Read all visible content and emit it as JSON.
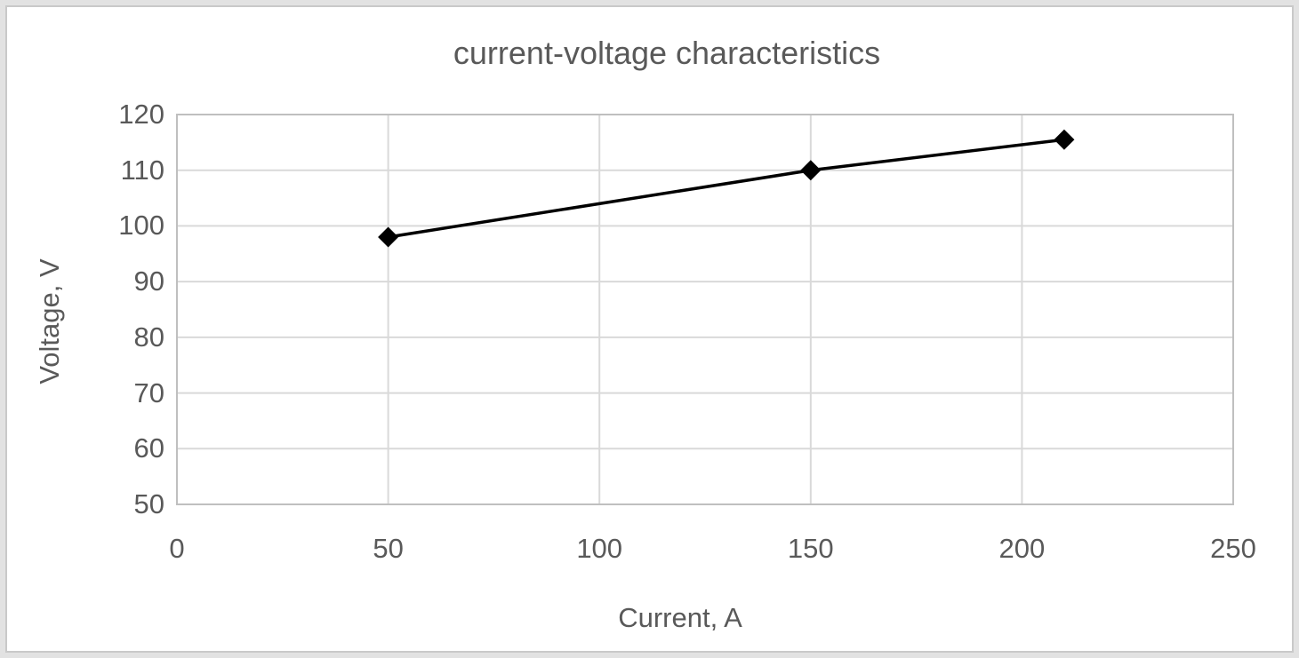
{
  "chart_data": {
    "type": "line",
    "title": "current-voltage characteristics",
    "xlabel": "Current, A",
    "ylabel": "Voltage, V",
    "series": [
      {
        "name": "current-voltage characteristics",
        "x": [
          50,
          150,
          210
        ],
        "y": [
          98,
          110,
          115.5
        ]
      }
    ],
    "xlim": [
      0,
      250
    ],
    "ylim": [
      50,
      120
    ],
    "x_ticks": [
      0,
      50,
      100,
      150,
      200,
      250
    ],
    "y_ticks": [
      50,
      60,
      70,
      80,
      90,
      100,
      110,
      120
    ],
    "grid": true,
    "legend": "none",
    "marker": "diamond",
    "colors": {
      "line": "#000000",
      "marker": "#000000",
      "text": "#595959",
      "gridline": "#d9d9d9",
      "plot_border": "#bfbfbf",
      "chart_border": "#c9c9c9",
      "background": "#ffffff"
    }
  }
}
